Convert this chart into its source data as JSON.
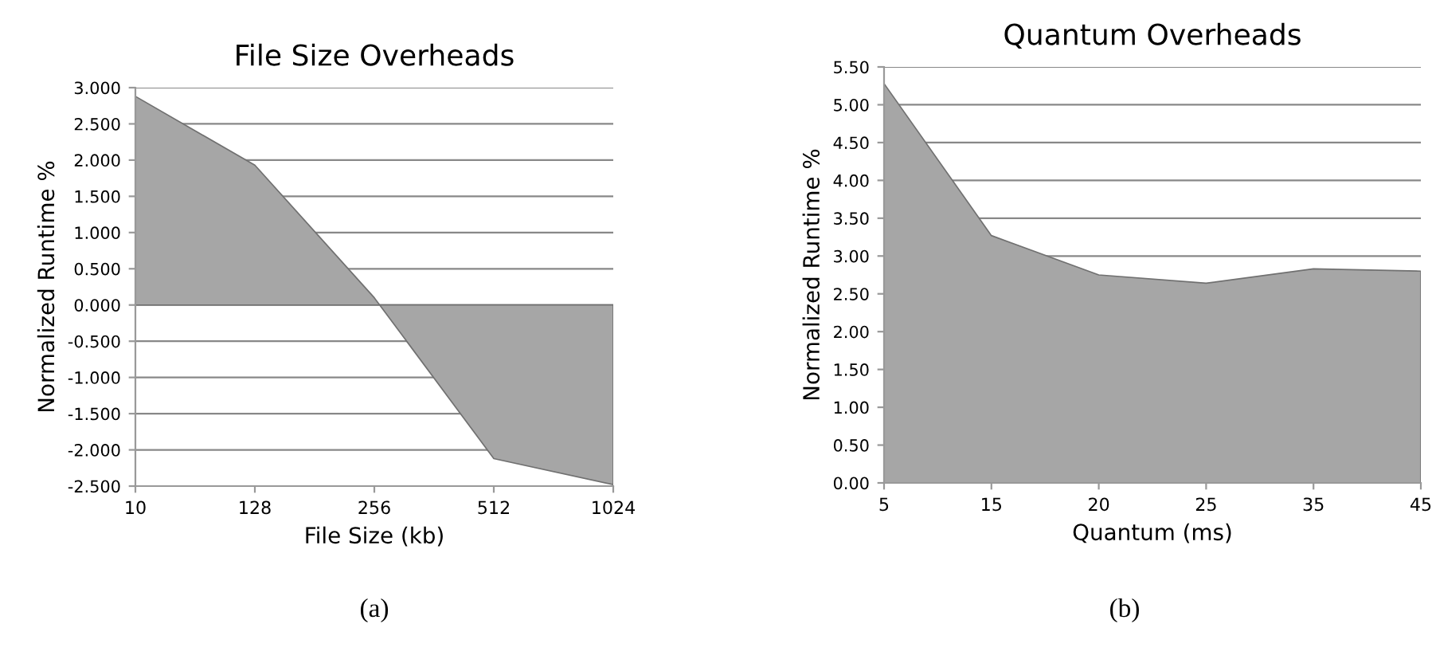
{
  "chart_data": [
    {
      "type": "area",
      "title": "File Size Overheads",
      "xlabel": "File Size (kb)",
      "ylabel": "Normalized Runtime %",
      "categories": [
        "10",
        "128",
        "256",
        "512",
        "1024"
      ],
      "series": [
        {
          "color": "#a6a6a6",
          "values": [
            2.88,
            1.93,
            0.1,
            -2.12,
            -2.48
          ]
        }
      ],
      "ylim": [
        -2.5,
        3.0
      ],
      "yticks": [
        {
          "value": -2.5,
          "label": "-2.500"
        },
        {
          "value": -2.0,
          "label": "-2.000"
        },
        {
          "value": -1.5,
          "label": "-1.500"
        },
        {
          "value": -1.0,
          "label": "-1.000"
        },
        {
          "value": -0.5,
          "label": "-0.500"
        },
        {
          "value": 0,
          "label": "0.000"
        },
        {
          "value": 0.5,
          "label": "0.500"
        },
        {
          "value": 1.0,
          "label": "1.000"
        },
        {
          "value": 1.5,
          "label": "1.500"
        },
        {
          "value": 2.0,
          "label": "2.000"
        },
        {
          "value": 2.5,
          "label": "2.500"
        },
        {
          "value": 3.0,
          "label": "3.000"
        }
      ],
      "grid": "y",
      "annotations": [
        "(a)"
      ]
    },
    {
      "type": "area",
      "title": "Quantum Overheads",
      "xlabel": "Quantum (ms)",
      "ylabel": "Normalized Runtime %",
      "categories": [
        "5",
        "15",
        "20",
        "25",
        "35",
        "45"
      ],
      "series": [
        {
          "color": "#a6a6a6",
          "values": [
            5.28,
            3.27,
            2.75,
            2.64,
            2.83,
            2.8
          ]
        }
      ],
      "ylim": [
        0,
        5.5
      ],
      "yticks": [
        {
          "value": 0,
          "label": "0.00"
        },
        {
          "value": 0.5,
          "label": "0.50"
        },
        {
          "value": 1.0,
          "label": "1.00"
        },
        {
          "value": 1.5,
          "label": "1.50"
        },
        {
          "value": 2.0,
          "label": "2.00"
        },
        {
          "value": 2.5,
          "label": "2.50"
        },
        {
          "value": 3.0,
          "label": "3.00"
        },
        {
          "value": 3.5,
          "label": "3.50"
        },
        {
          "value": 4.0,
          "label": "4.00"
        },
        {
          "value": 4.5,
          "label": "4.50"
        },
        {
          "value": 5.0,
          "label": "5.00"
        },
        {
          "value": 5.5,
          "label": "5.50"
        }
      ],
      "grid": "y",
      "annotations": [
        "(b)"
      ]
    }
  ]
}
